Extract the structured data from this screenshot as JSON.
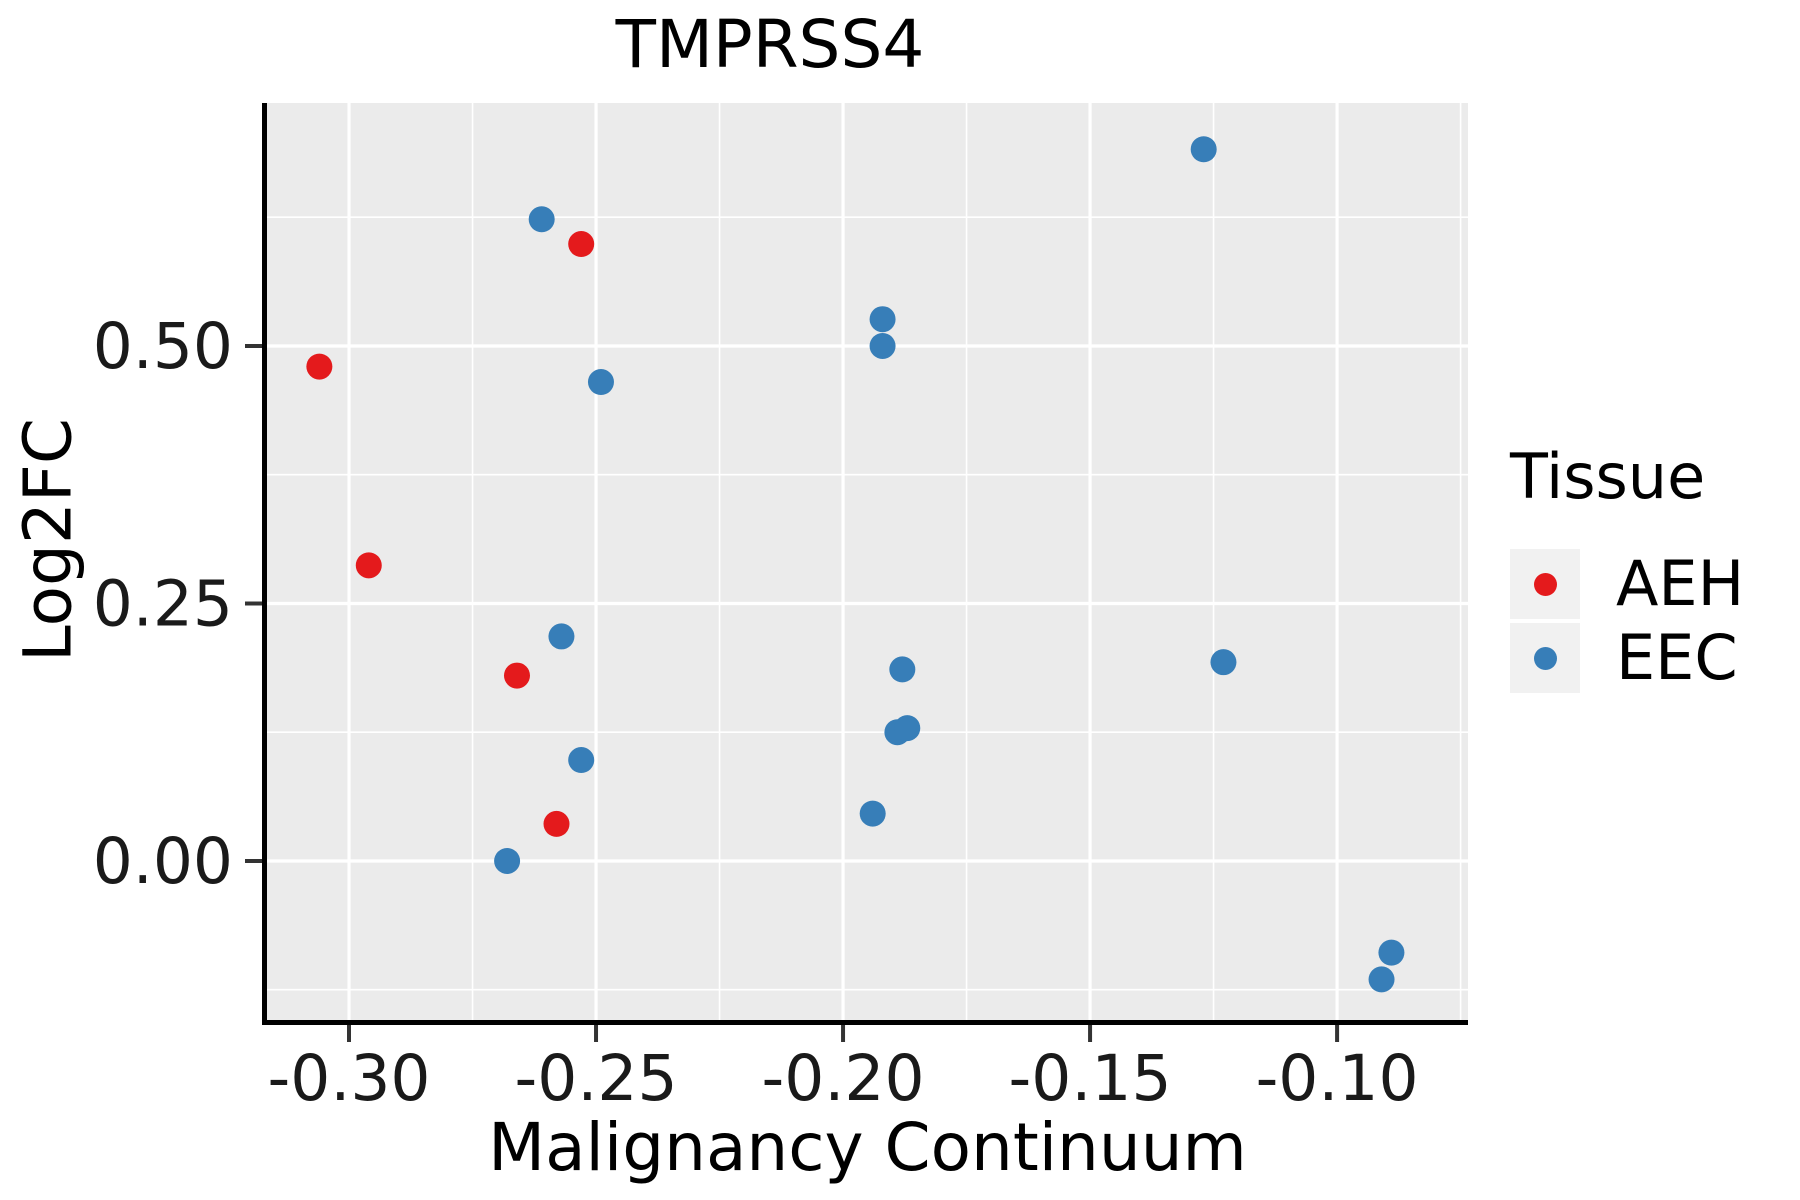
{
  "chart_data": {
    "type": "scatter",
    "title": "TMPRSS4",
    "xlabel": "Malignancy Continuum",
    "ylabel": "Log2FC",
    "legend": {
      "title": "Tissue",
      "position": "right",
      "entries": [
        "AEH",
        "EEC"
      ]
    },
    "xlim": [
      -0.3166,
      -0.0735
    ],
    "ylim": [
      -0.1544,
      0.7359
    ],
    "x_ticks": [
      -0.3,
      -0.25,
      -0.2,
      -0.15,
      -0.1
    ],
    "x_tick_labels": [
      "-0.30",
      "-0.25",
      "-0.20",
      "-0.15",
      "-0.10"
    ],
    "y_ticks": [
      0.0,
      0.25,
      0.5
    ],
    "y_tick_labels": [
      "0.00",
      "0.25",
      "0.50"
    ],
    "x_minor_ticks": [
      -0.275,
      -0.225,
      -0.175,
      -0.125,
      -0.075
    ],
    "y_minor_ticks": [
      -0.125,
      0.125,
      0.375,
      0.625
    ],
    "grid": "on",
    "colors": {
      "panel_background": "#EBEBEB",
      "gridline": "#FFFFFF",
      "axis_line": "#000000",
      "tick_mark": "#333333",
      "tick_label": "#1a1a1a",
      "legend_key_background": "#F1F1F1"
    },
    "series": [
      {
        "name": "AEH",
        "color": "#E41A1C",
        "points": [
          [
            -0.306,
            0.48
          ],
          [
            -0.296,
            0.287
          ],
          [
            -0.266,
            0.18
          ],
          [
            -0.258,
            0.036
          ],
          [
            -0.253,
            0.599
          ]
        ]
      },
      {
        "name": "EEC",
        "color": "#377EB8",
        "points": [
          [
            -0.268,
            0.0
          ],
          [
            -0.261,
            0.623
          ],
          [
            -0.257,
            0.218
          ],
          [
            -0.253,
            0.098
          ],
          [
            -0.249,
            0.465
          ],
          [
            -0.194,
            0.046
          ],
          [
            -0.192,
            0.526
          ],
          [
            -0.192,
            0.5
          ],
          [
            -0.189,
            0.125
          ],
          [
            -0.187,
            0.129
          ],
          [
            -0.188,
            0.186
          ],
          [
            -0.127,
            0.691
          ],
          [
            -0.123,
            0.193
          ],
          [
            -0.089,
            -0.089
          ],
          [
            -0.091,
            -0.115
          ]
        ]
      }
    ]
  }
}
